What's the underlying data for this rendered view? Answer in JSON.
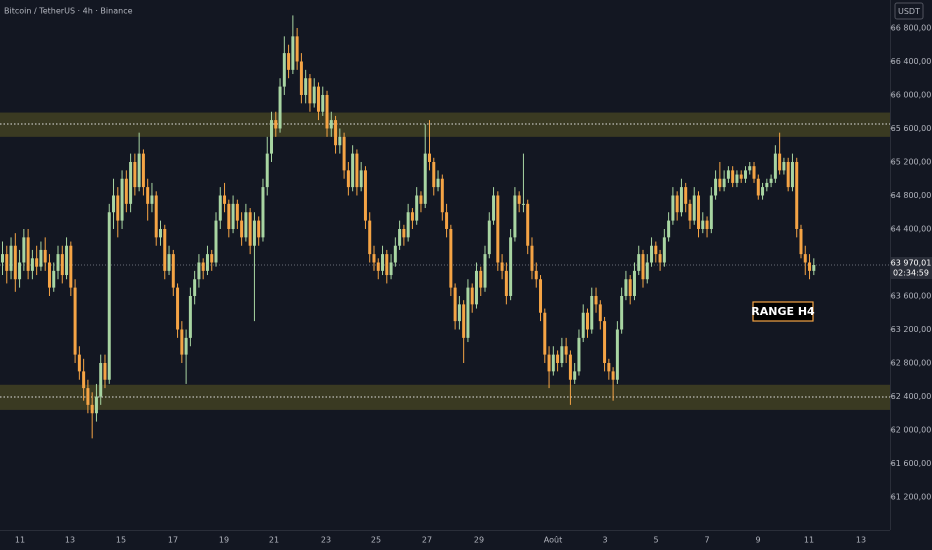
{
  "chart_data": {
    "type": "candlestick",
    "title": "Bitcoin / TetherUS · 4h · Binance",
    "currency": "USDT",
    "annotation": "RANGE H4",
    "up_color": "#a8d5a2",
    "down_color": "#f5a445",
    "ylim": [
      60806,
      67134
    ],
    "yticks": [
      {
        "value": 61200,
        "label": "61 200,00"
      },
      {
        "value": 61600,
        "label": "61 600,00"
      },
      {
        "value": 62000,
        "label": "62 000,00"
      },
      {
        "value": 62400,
        "label": "62 400,00"
      },
      {
        "value": 62800,
        "label": "62 800,00"
      },
      {
        "value": 63200,
        "label": "63 200,00"
      },
      {
        "value": 63600,
        "label": "63 600,00"
      },
      {
        "value": 64000,
        "label": "64 000,00"
      },
      {
        "value": 64400,
        "label": "64 400,00"
      },
      {
        "value": 64800,
        "label": "64 800,00"
      },
      {
        "value": 65200,
        "label": "65 200,00"
      },
      {
        "value": 65600,
        "label": "65 600,00"
      },
      {
        "value": 66000,
        "label": "66 000,00"
      },
      {
        "value": 66400,
        "label": "66 400,00"
      },
      {
        "value": 66800,
        "label": "66 800,00"
      }
    ],
    "x_labels": [
      "11",
      "13",
      "15",
      "17",
      "19",
      "21",
      "23",
      "25",
      "27",
      "29",
      "Août",
      "3",
      "5",
      "7",
      "9",
      "11",
      "13"
    ],
    "zones": [
      {
        "low": 65500,
        "high": 65790,
        "level": 65654,
        "color": "#3a3a22"
      },
      {
        "low": 62240,
        "high": 62540,
        "level": 62394,
        "color": "#3a3a22"
      }
    ],
    "last_price": {
      "value": 63970.01,
      "label": "63 970,01",
      "countdown": "02:34:59"
    },
    "candles": [
      [
        64000,
        64250,
        63850,
        64100
      ],
      [
        64100,
        64200,
        63750,
        63900
      ],
      [
        63900,
        64300,
        63800,
        64200
      ],
      [
        64200,
        64350,
        63650,
        63800
      ],
      [
        63800,
        64150,
        63700,
        64000
      ],
      [
        64000,
        64400,
        63900,
        64300
      ],
      [
        64300,
        64400,
        63800,
        63900
      ],
      [
        63900,
        64150,
        63800,
        64050
      ],
      [
        64050,
        64200,
        63850,
        63950
      ],
      [
        63950,
        64250,
        63900,
        64150
      ],
      [
        64150,
        64300,
        63900,
        64000
      ],
      [
        64000,
        64100,
        63600,
        63700
      ],
      [
        63700,
        64000,
        63650,
        63900
      ],
      [
        63900,
        64200,
        63800,
        64100
      ],
      [
        64100,
        64200,
        63750,
        63850
      ],
      [
        63850,
        64300,
        63800,
        64200
      ],
      [
        64200,
        64250,
        63600,
        63700
      ],
      [
        63700,
        63800,
        62800,
        62900
      ],
      [
        62900,
        63000,
        62600,
        62700
      ],
      [
        62700,
        62850,
        62350,
        62500
      ],
      [
        62500,
        62600,
        62200,
        62300
      ],
      [
        62300,
        62450,
        61900,
        62200
      ],
      [
        62200,
        62550,
        62100,
        62400
      ],
      [
        62400,
        62900,
        62300,
        62800
      ],
      [
        62800,
        62900,
        62500,
        62600
      ],
      [
        62600,
        64700,
        62550,
        64600
      ],
      [
        64600,
        65000,
        64400,
        64800
      ],
      [
        64800,
        64900,
        64300,
        64500
      ],
      [
        64500,
        65100,
        64400,
        65000
      ],
      [
        65000,
        65100,
        64600,
        64700
      ],
      [
        64700,
        65300,
        64600,
        65200
      ],
      [
        65200,
        65300,
        64800,
        64900
      ],
      [
        64900,
        65550,
        64850,
        65300
      ],
      [
        65300,
        65350,
        64800,
        64900
      ],
      [
        64900,
        65000,
        64500,
        64700
      ],
      [
        64700,
        64950,
        64600,
        64800
      ],
      [
        64800,
        64850,
        64200,
        64300
      ],
      [
        64300,
        64500,
        64200,
        64400
      ],
      [
        64400,
        64450,
        63800,
        63900
      ],
      [
        63900,
        64200,
        63850,
        64100
      ],
      [
        64100,
        64150,
        63600,
        63700
      ],
      [
        63700,
        63750,
        63100,
        63200
      ],
      [
        63200,
        63300,
        62800,
        62900
      ],
      [
        62900,
        63200,
        62550,
        63100
      ],
      [
        63100,
        63700,
        63000,
        63600
      ],
      [
        63600,
        63900,
        63500,
        63800
      ],
      [
        63800,
        64100,
        63700,
        64000
      ],
      [
        64000,
        64050,
        63800,
        63900
      ],
      [
        63900,
        64200,
        63850,
        64100
      ],
      [
        64100,
        64150,
        63900,
        64000
      ],
      [
        64000,
        64600,
        63950,
        64500
      ],
      [
        64500,
        64900,
        64400,
        64800
      ],
      [
        64800,
        64950,
        64600,
        64700
      ],
      [
        64700,
        64750,
        64300,
        64400
      ],
      [
        64400,
        64800,
        64350,
        64700
      ],
      [
        64700,
        64750,
        64400,
        64500
      ],
      [
        64500,
        64600,
        64200,
        64300
      ],
      [
        64300,
        64700,
        64250,
        64600
      ],
      [
        64600,
        64650,
        64100,
        64200
      ],
      [
        64200,
        64600,
        63300,
        64500
      ],
      [
        64500,
        64550,
        64200,
        64300
      ],
      [
        64300,
        65000,
        64250,
        64900
      ],
      [
        64900,
        65500,
        64800,
        65300
      ],
      [
        65300,
        65800,
        65200,
        65700
      ],
      [
        65700,
        65800,
        65500,
        65600
      ],
      [
        65600,
        66200,
        65550,
        66100
      ],
      [
        66100,
        66700,
        66000,
        66500
      ],
      [
        66500,
        66600,
        66200,
        66300
      ],
      [
        66300,
        66950,
        66250,
        66700
      ],
      [
        66700,
        66800,
        66300,
        66400
      ],
      [
        66400,
        66500,
        65900,
        66000
      ],
      [
        66000,
        66300,
        65900,
        66200
      ],
      [
        66200,
        66250,
        65800,
        65900
      ],
      [
        65900,
        66200,
        65850,
        66100
      ],
      [
        66100,
        66150,
        65700,
        65800
      ],
      [
        65800,
        66100,
        65750,
        66000
      ],
      [
        66000,
        66050,
        65500,
        65600
      ],
      [
        65600,
        65800,
        65500,
        65700
      ],
      [
        65700,
        65750,
        65300,
        65400
      ],
      [
        65400,
        65600,
        65300,
        65500
      ],
      [
        65500,
        65550,
        65000,
        65100
      ],
      [
        65100,
        65200,
        64800,
        64900
      ],
      [
        64900,
        65400,
        64850,
        65300
      ],
      [
        65300,
        65350,
        64800,
        64900
      ],
      [
        64900,
        65200,
        64850,
        65100
      ],
      [
        65100,
        65150,
        64400,
        64500
      ],
      [
        64500,
        64600,
        64000,
        64100
      ],
      [
        64100,
        64200,
        63900,
        64000
      ],
      [
        64000,
        64050,
        63800,
        63900
      ],
      [
        63900,
        64200,
        63850,
        64100
      ],
      [
        64100,
        64150,
        63750,
        63850
      ],
      [
        63850,
        64100,
        63800,
        64000
      ],
      [
        64000,
        64300,
        63950,
        64200
      ],
      [
        64200,
        64500,
        64150,
        64400
      ],
      [
        64400,
        64450,
        64200,
        64300
      ],
      [
        64300,
        64700,
        64250,
        64600
      ],
      [
        64600,
        64650,
        64400,
        64500
      ],
      [
        64500,
        64900,
        64450,
        64800
      ],
      [
        64800,
        64850,
        64600,
        64700
      ],
      [
        64700,
        65650,
        64650,
        65300
      ],
      [
        65300,
        65700,
        65100,
        65200
      ],
      [
        65200,
        65250,
        64800,
        64900
      ],
      [
        64900,
        65100,
        64850,
        65000
      ],
      [
        65000,
        65050,
        64500,
        64600
      ],
      [
        64600,
        64700,
        64300,
        64400
      ],
      [
        64400,
        64450,
        63600,
        63700
      ],
      [
        63700,
        63750,
        63200,
        63300
      ],
      [
        63300,
        63600,
        63200,
        63500
      ],
      [
        63500,
        63550,
        62800,
        63100
      ],
      [
        63100,
        63800,
        63050,
        63700
      ],
      [
        63700,
        63750,
        63400,
        63500
      ],
      [
        63500,
        64000,
        63450,
        63900
      ],
      [
        63900,
        63950,
        63600,
        63700
      ],
      [
        63700,
        64200,
        63650,
        64100
      ],
      [
        64100,
        64600,
        64050,
        64500
      ],
      [
        64500,
        64900,
        64450,
        64800
      ],
      [
        64800,
        64850,
        63900,
        64000
      ],
      [
        64000,
        64100,
        63800,
        63900
      ],
      [
        63900,
        64000,
        63500,
        63600
      ],
      [
        63600,
        64400,
        63550,
        64300
      ],
      [
        64300,
        64900,
        64250,
        64800
      ],
      [
        64800,
        64850,
        64600,
        64700
      ],
      [
        64700,
        65300,
        64600,
        64700
      ],
      [
        64700,
        64750,
        64100,
        64200
      ],
      [
        64200,
        64300,
        63800,
        63900
      ],
      [
        63900,
        64000,
        63700,
        63800
      ],
      [
        63800,
        63850,
        63300,
        63400
      ],
      [
        63400,
        63450,
        62800,
        62900
      ],
      [
        62900,
        63000,
        62500,
        62700
      ],
      [
        62700,
        63000,
        62650,
        62900
      ],
      [
        62900,
        62950,
        62700,
        62800
      ],
      [
        62800,
        63100,
        62750,
        63000
      ],
      [
        63000,
        63100,
        62800,
        62900
      ],
      [
        62900,
        62950,
        62300,
        62600
      ],
      [
        62600,
        62800,
        62550,
        62700
      ],
      [
        62700,
        63200,
        62650,
        63100
      ],
      [
        63100,
        63500,
        63050,
        63400
      ],
      [
        63400,
        63450,
        63100,
        63200
      ],
      [
        63200,
        63700,
        63150,
        63600
      ],
      [
        63600,
        63700,
        63400,
        63500
      ],
      [
        63500,
        63550,
        63200,
        63300
      ],
      [
        63300,
        63350,
        62700,
        62800
      ],
      [
        62800,
        62850,
        62600,
        62700
      ],
      [
        62700,
        62750,
        62350,
        62600
      ],
      [
        62600,
        63300,
        62550,
        63200
      ],
      [
        63200,
        63700,
        63150,
        63600
      ],
      [
        63600,
        63900,
        63550,
        63800
      ],
      [
        63800,
        63850,
        63500,
        63600
      ],
      [
        63600,
        64000,
        63550,
        63900
      ],
      [
        63900,
        64200,
        63850,
        64100
      ],
      [
        64100,
        64150,
        63700,
        63800
      ],
      [
        63800,
        64100,
        63750,
        64000
      ],
      [
        64000,
        64300,
        63950,
        64200
      ],
      [
        64200,
        64250,
        64000,
        64100
      ],
      [
        64100,
        64150,
        63900,
        64000
      ],
      [
        64000,
        64400,
        63950,
        64300
      ],
      [
        64300,
        64600,
        64250,
        64500
      ],
      [
        64500,
        64900,
        64450,
        64800
      ],
      [
        64800,
        64850,
        64500,
        64600
      ],
      [
        64600,
        65000,
        64550,
        64900
      ],
      [
        64900,
        64950,
        64600,
        64700
      ],
      [
        64700,
        64750,
        64400,
        64500
      ],
      [
        64500,
        64900,
        64450,
        64800
      ],
      [
        64800,
        64850,
        64300,
        64400
      ],
      [
        64400,
        64600,
        64350,
        64500
      ],
      [
        64500,
        64550,
        64300,
        64400
      ],
      [
        64400,
        64900,
        64350,
        64800
      ],
      [
        64800,
        65100,
        64750,
        65000
      ],
      [
        65000,
        65200,
        64850,
        64900
      ],
      [
        64900,
        65100,
        64850,
        65000
      ],
      [
        65000,
        65150,
        64950,
        65100
      ],
      [
        65100,
        65150,
        64900,
        64950
      ],
      [
        64950,
        65100,
        64900,
        65050
      ],
      [
        65050,
        65100,
        64950,
        65000
      ],
      [
        65000,
        65150,
        64950,
        65100
      ],
      [
        65100,
        65200,
        65050,
        65150
      ],
      [
        65150,
        65200,
        64950,
        65000
      ],
      [
        65000,
        65050,
        64750,
        64800
      ],
      [
        64800,
        64950,
        64750,
        64900
      ],
      [
        64900,
        65000,
        64850,
        64950
      ],
      [
        64950,
        65050,
        64900,
        65000
      ],
      [
        65000,
        65400,
        64950,
        65300
      ],
      [
        65300,
        65550,
        65050,
        65100
      ],
      [
        65100,
        65250,
        65050,
        65200
      ],
      [
        65200,
        65250,
        64850,
        64900
      ],
      [
        64900,
        65300,
        64850,
        65200
      ],
      [
        65200,
        65250,
        64300,
        64400
      ],
      [
        64400,
        64450,
        64050,
        64100
      ],
      [
        64100,
        64200,
        63850,
        64000
      ],
      [
        64000,
        64100,
        63800,
        63900
      ],
      [
        63900,
        64050,
        63850,
        63970.01
      ]
    ]
  }
}
